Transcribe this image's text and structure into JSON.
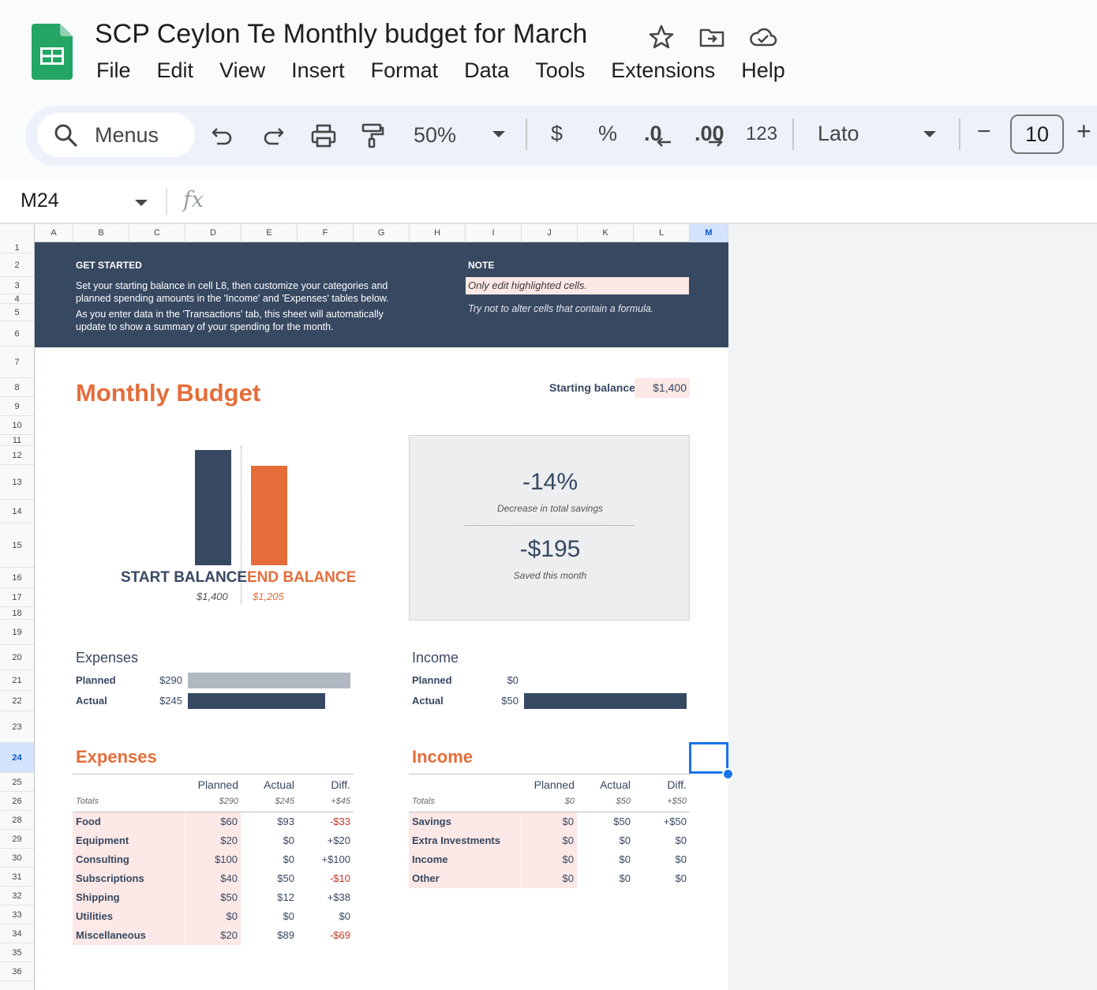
{
  "app": {
    "doc_title": "SCP Ceylon Te Monthly budget for March",
    "menus": [
      "File",
      "Edit",
      "View",
      "Insert",
      "Format",
      "Data",
      "Tools",
      "Extensions",
      "Help"
    ]
  },
  "toolbar": {
    "search_label": "Menus",
    "zoom": "50%",
    "currency": "$",
    "percent": "%",
    "decrease_decimal": ".0",
    "increase_decimal": ".00",
    "number_format": "123",
    "font": "Lato",
    "minus": "−",
    "font_size": "10",
    "plus": "+"
  },
  "formula_bar": {
    "cell_ref": "M24",
    "fx": "fx"
  },
  "columns": [
    "A",
    "B",
    "C",
    "D",
    "E",
    "F",
    "G",
    "H",
    "I",
    "J",
    "K",
    "L",
    "M"
  ],
  "active_column": "M",
  "rows": [
    "1",
    "2",
    "3",
    "4",
    "5",
    "6",
    "7",
    "8",
    "9",
    "10",
    "11",
    "12",
    "13",
    "14",
    "15",
    "16",
    "17",
    "18",
    "19",
    "20",
    "21",
    "22",
    "23",
    "24",
    "25",
    "26",
    "28",
    "29",
    "30",
    "31",
    "32",
    "33",
    "34",
    "35",
    "36"
  ],
  "active_row": "24",
  "banner": {
    "get_started_heading": "GET STARTED",
    "get_started_line1": "Set your starting balance in cell L8, then customize your categories and",
    "get_started_line2": "planned spending amounts in the 'Income' and 'Expenses' tables below.",
    "get_started_line3": "As you enter data in the 'Transactions' tab, this sheet will automatically",
    "get_started_line4": "update to show a summary of your spending for the month.",
    "note_heading": "NOTE",
    "note_highlight": "Only edit highlighted cells.",
    "note_text": "Try not to alter cells that contain a formula."
  },
  "budget": {
    "title": "Monthly Budget",
    "starting_balance_label": "Starting balance:",
    "starting_balance_value": "$1,400"
  },
  "balance_chart": {
    "start_label": "START BALANCE",
    "start_value": "$1,400",
    "end_label": "END BALANCE",
    "end_value": "$1,205",
    "colors": {
      "start": "#374861",
      "end": "#e46d3a"
    }
  },
  "chart_data": {
    "type": "bar",
    "categories": [
      "START BALANCE",
      "END BALANCE"
    ],
    "values": [
      1400,
      1205
    ]
  },
  "summary": {
    "pct_change": "-14%",
    "pct_caption": "Decrease in total savings",
    "saved": "-$195",
    "saved_caption": "Saved this month"
  },
  "expense_compare": {
    "heading": "Expenses",
    "planned_label": "Planned",
    "planned_value": "$290",
    "planned_amount": 290,
    "actual_label": "Actual",
    "actual_value": "$245",
    "actual_amount": 245
  },
  "income_compare": {
    "heading": "Income",
    "planned_label": "Planned",
    "planned_value": "$0",
    "planned_amount": 0,
    "actual_label": "Actual",
    "actual_value": "$50",
    "actual_amount": 50
  },
  "expenses_table": {
    "title": "Expenses",
    "headers": [
      "Planned",
      "Actual",
      "Diff."
    ],
    "totals_label": "Totals",
    "totals": [
      "$290",
      "$245",
      "+$45"
    ],
    "rows": [
      {
        "category": "Food",
        "planned": "$60",
        "actual": "$93",
        "diff": "-$33"
      },
      {
        "category": "Equipment",
        "planned": "$20",
        "actual": "$0",
        "diff": "+$20"
      },
      {
        "category": "Consulting",
        "planned": "$100",
        "actual": "$0",
        "diff": "+$100"
      },
      {
        "category": "Subscriptions",
        "planned": "$40",
        "actual": "$50",
        "diff": "-$10"
      },
      {
        "category": "Shipping",
        "planned": "$50",
        "actual": "$12",
        "diff": "+$38"
      },
      {
        "category": "Utilities",
        "planned": "$0",
        "actual": "$0",
        "diff": "$0"
      },
      {
        "category": "Miscellaneous",
        "planned": "$20",
        "actual": "$89",
        "diff": "-$69"
      }
    ]
  },
  "income_table": {
    "title": "Income",
    "headers": [
      "Planned",
      "Actual",
      "Diff."
    ],
    "totals_label": "Totals",
    "totals": [
      "$0",
      "$50",
      "+$50"
    ],
    "rows": [
      {
        "category": "Savings",
        "planned": "$0",
        "actual": "$50",
        "diff": "+$50"
      },
      {
        "category": "Extra Investments",
        "planned": "$0",
        "actual": "$0",
        "diff": "$0"
      },
      {
        "category": "Income",
        "planned": "$0",
        "actual": "$0",
        "diff": "$0"
      },
      {
        "category": "Other",
        "planned": "$0",
        "actual": "$0",
        "diff": "$0"
      }
    ]
  },
  "colors": {
    "navy": "#374861",
    "orange": "#e46d3a",
    "highlight": "#fce8e6",
    "planned_bar": "#b0b8c1",
    "negative": "#c0392b",
    "selection": "#1a73e8"
  }
}
